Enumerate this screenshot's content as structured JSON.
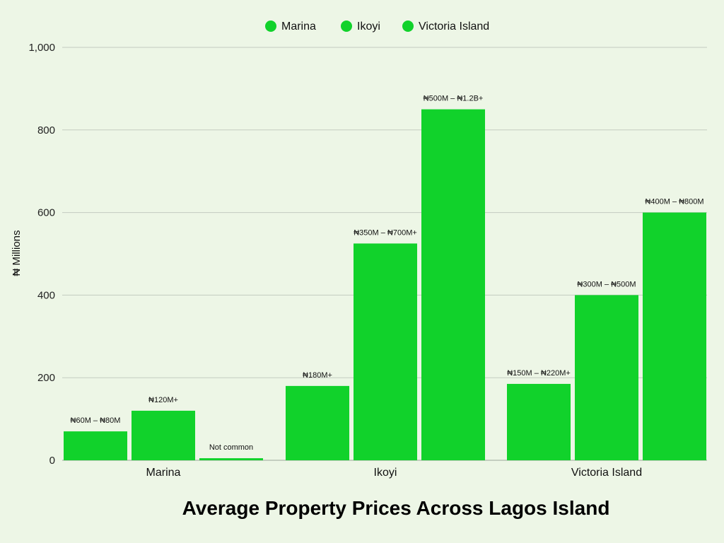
{
  "chart_data": {
    "type": "bar",
    "title": "Average Property Prices Across Lagos Island",
    "xlabel": "",
    "ylabel": "₦ Millions",
    "ylim": [
      0,
      1000
    ],
    "yticks": [
      0,
      200,
      400,
      600,
      800,
      1000
    ],
    "ytick_labels": [
      "0",
      "200",
      "400",
      "600",
      "800",
      "1,000"
    ],
    "grid": true,
    "legend_position": "top-center",
    "categories": [
      "Marina",
      "Ikoyi",
      "Victoria Island"
    ],
    "series": [
      {
        "name": "Marina",
        "color": "#11d22b",
        "values": [
          70,
          180,
          185
        ],
        "labels": [
          "₦60M – ₦80M",
          "₦180M+",
          "₦150M – ₦220M+"
        ]
      },
      {
        "name": "Ikoyi",
        "color": "#11d22b",
        "values": [
          120,
          525,
          400
        ],
        "labels": [
          "₦120M+",
          "₦350M – ₦700M+",
          "₦300M – ₦500M"
        ]
      },
      {
        "name": "Victoria Island",
        "color": "#11d22b",
        "values": [
          5,
          850,
          600
        ],
        "labels": [
          "Not common",
          "₦500M – ₦1.2B+",
          "₦400M – ₦800M"
        ]
      }
    ]
  }
}
